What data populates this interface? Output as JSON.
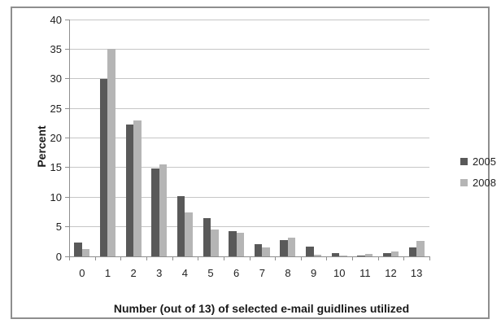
{
  "chart_data": {
    "type": "bar",
    "title": "",
    "xlabel": "Number (out of 13) of selected e-mail guidlines utilized",
    "ylabel": "Percent",
    "categories": [
      "0",
      "1",
      "2",
      "3",
      "4",
      "5",
      "6",
      "7",
      "8",
      "9",
      "10",
      "11",
      "12",
      "13"
    ],
    "series": [
      {
        "name": "2005",
        "color": "#595959",
        "values": [
          2.3,
          30.0,
          22.3,
          14.8,
          10.2,
          6.4,
          4.3,
          2.0,
          2.8,
          1.6,
          0.6,
          0.2,
          0.5,
          1.5
        ]
      },
      {
        "name": "2008",
        "color": "#b5b5b5",
        "values": [
          1.2,
          35.0,
          23.0,
          15.6,
          7.4,
          4.5,
          4.0,
          1.5,
          3.2,
          0.3,
          0.1,
          0.4,
          0.8,
          2.6
        ]
      }
    ],
    "ylim": [
      0,
      40
    ],
    "ytick_step": 5,
    "grid": true,
    "legend_position": "right"
  },
  "colors": {
    "grid": "#c6c6c6",
    "axis": "#8e8e8e",
    "frame_border": "#8e8e8e",
    "text": "#1f1f1f"
  }
}
